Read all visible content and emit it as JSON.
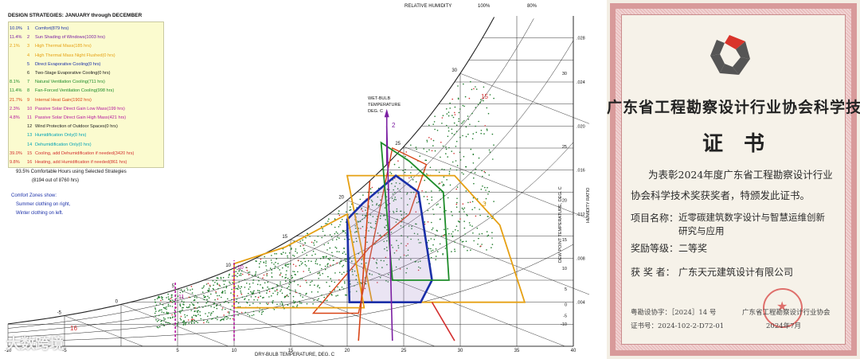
{
  "chart": {
    "title": "DESIGN STRATEGIES: JANUARY through DECEMBER",
    "top_labels": {
      "relative_humidity": "RELATIVE HUMIDITY",
      "rh100": "100%",
      "rh80": "80%"
    },
    "strategies": [
      {
        "pct": "10.0%",
        "num": "1",
        "label": "Comfort(879 hrs)",
        "color": "#1a2fa8"
      },
      {
        "pct": "11.4%",
        "num": "2",
        "label": "Sun Shading of Windows(1003 hrs)",
        "color": "#7b1fa2"
      },
      {
        "pct": "2.1%",
        "num": "3",
        "label": "High Thermal Mass(185 hrs)",
        "color": "#e6a013"
      },
      {
        "pct": "",
        "num": "4",
        "label": "High Thermal Mass Night Flushed(0 hrs)",
        "color": "#e6a013"
      },
      {
        "pct": "",
        "num": "5",
        "label": "Direct Evaporative Cooling(0 hrs)",
        "color": "#1a2fa8"
      },
      {
        "pct": "",
        "num": "6",
        "label": "Two-Stage Evaporative Cooling(0 hrs)",
        "color": "#1a1a1a"
      },
      {
        "pct": "8.1%",
        "num": "7",
        "label": "Natural Ventilation Cooling(711 hrs)",
        "color": "#1e8c2a"
      },
      {
        "pct": "11.4%",
        "num": "8",
        "label": "Fan-Forced Ventilation Cooling(998 hrs)",
        "color": "#1e8c2a"
      },
      {
        "pct": "21.7%",
        "num": "9",
        "label": "Internal Heat Gain(1902 hrs)",
        "color": "#d84315"
      },
      {
        "pct": "2.3%",
        "num": "10",
        "label": "Passive Solar Direct Gain Low Mass(199 hrs)",
        "color": "#b5179e"
      },
      {
        "pct": "4.8%",
        "num": "11",
        "label": "Passive Solar Direct Gain High Mass(421 hrs)",
        "color": "#b5179e"
      },
      {
        "pct": "",
        "num": "12",
        "label": "Wind Protection of Outdoor Spaces(0 hrs)",
        "color": "#1a1a1a"
      },
      {
        "pct": "",
        "num": "13",
        "label": "Humidification Only(0 hrs)",
        "color": "#00a3b5"
      },
      {
        "pct": "",
        "num": "14",
        "label": "Dehumidification Only(0 hrs)",
        "color": "#00a3b5"
      },
      {
        "pct": "39.0%",
        "num": "15",
        "label": "Cooling, add Dehumidification if needed(3420 hrs)",
        "color": "#d32f2f"
      },
      {
        "pct": "9.8%",
        "num": "16",
        "label": "Heating, add Humidification if needed(861 hrs)",
        "color": "#d32f2f"
      }
    ],
    "summary1": "93.5%   Comfortable Hours using Selected Strategies",
    "summary2": "(8194 out of 8760 hrs)",
    "comfort_note1": "Comfort Zones show:",
    "comfort_note2": "Summer clothing on right,",
    "comfort_note3": "Winter clothing on left.",
    "wet_bulb": [
      "WET-BULB",
      "TEMPERATURE",
      "DEG. C"
    ],
    "x_axis_label": "DRY-BULB TEMPERATURE, DEG. C",
    "dew_axis_label": "DEW POINT TEMPERATURE, DEG. C",
    "hum_axis_label": "HUMIDITY RATIO",
    "x_ticks": [
      "-10",
      "-5",
      "5",
      "10",
      "15",
      "20",
      "25",
      "30",
      "35",
      "40"
    ],
    "hr_ticks": [
      ".028",
      ".024",
      ".020",
      ".016",
      ".012",
      ".008",
      ".004"
    ],
    "dew_ticks": [
      "30",
      "25",
      "20",
      "15",
      "10",
      "5",
      "0",
      "-5",
      "-10"
    ],
    "wb_ticks": [
      "30",
      "25",
      "20",
      "15",
      "10",
      "5",
      "0",
      "-5"
    ],
    "zone_labels": {
      "z15": "15",
      "z2": "2",
      "z3": "3",
      "z16": "16",
      "z10": "10",
      "z11": "11"
    },
    "watermark": "大数跨境"
  },
  "certificate": {
    "title": "广东省工程勘察设计行业协会科学技术奖",
    "heading": "证书",
    "body1": "为表彰2024年度广东省工程勘察设计行业",
    "body2": "协会科学技术奖获奖者，特颁发此证书。",
    "project_label": "项目名称：",
    "project_value1": "近零碳建筑数字设计与智慧运维创新",
    "project_value2": "研究与应用",
    "level_label": "奖励等级：",
    "level_value": "二等奖",
    "winner_label": "获 奖 者：",
    "winner_value": "广东天元建筑设计有限公司",
    "ref1": "粤勘设协字：［2024］14 号",
    "ref2": "证书号：2024-102-2-D72-01",
    "issuer": "广东省工程勘察设计行业协会",
    "date": "2024年7月",
    "colors": {
      "logo_red": "#d9342b",
      "logo_gray": "#555555"
    }
  }
}
